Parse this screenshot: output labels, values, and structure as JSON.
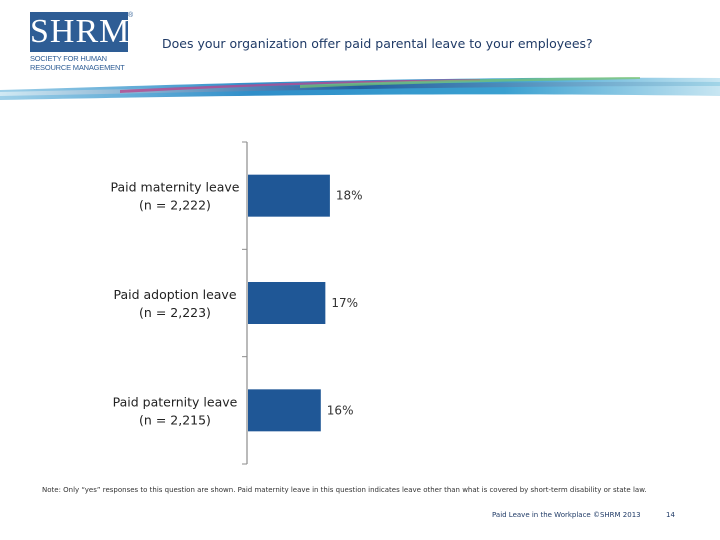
{
  "logo": {
    "word": "SHRM",
    "registered": "®",
    "line1": "SOCIETY FOR HUMAN",
    "line2": "RESOURCE MANAGEMENT"
  },
  "header": {
    "title": "Does your organization offer paid parental leave to your employees?"
  },
  "colors": {
    "bar": "#1f5796",
    "brand": "#2e5d95"
  },
  "chart_data": {
    "type": "bar",
    "orientation": "horizontal",
    "categories": [
      [
        "Paid maternity leave",
        "(n = 2,222)"
      ],
      [
        "Paid adoption leave",
        "(n = 2,223)"
      ],
      [
        "Paid paternity leave",
        "(n = 2,215)"
      ]
    ],
    "values": [
      18,
      17,
      16
    ],
    "data_labels": [
      "18%",
      "17%",
      "16%"
    ],
    "xlim": [
      0,
      100
    ],
    "title": "",
    "xlabel": "",
    "ylabel": "",
    "grid": false,
    "legend": "none"
  },
  "note": "Note: Only “yes” responses to this question are shown. Paid maternity leave in this question indicates leave other than what is covered by short-term disability or state law.",
  "footer": {
    "text": "Paid Leave in the Workplace ©SHRM 2013",
    "page": "14"
  }
}
